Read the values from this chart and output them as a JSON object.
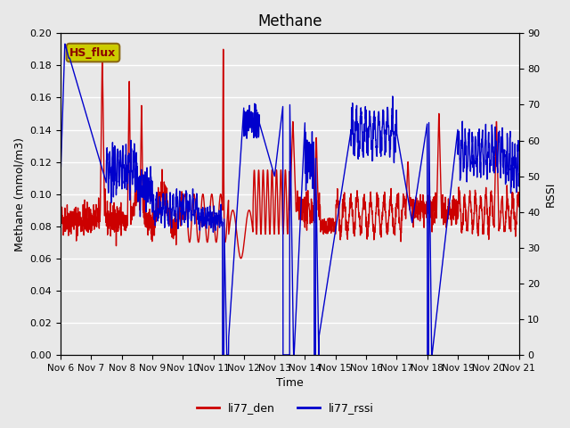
{
  "title": "Methane",
  "xlabel": "Time",
  "ylabel_left": "Methane (mmol/m3)",
  "ylabel_right": "RSSI",
  "left_ylim": [
    0.0,
    0.2
  ],
  "right_ylim": [
    0,
    90
  ],
  "left_yticks": [
    0.0,
    0.02,
    0.04,
    0.06,
    0.08,
    0.1,
    0.12,
    0.14,
    0.16,
    0.18,
    0.2
  ],
  "right_yticks": [
    0,
    10,
    20,
    30,
    40,
    50,
    60,
    70,
    80,
    90
  ],
  "xtick_labels": [
    "Nov 6",
    "Nov 7",
    "Nov 8",
    "Nov 9",
    "Nov 10",
    "Nov 11",
    "Nov 12",
    "Nov 13",
    "Nov 14",
    "Nov 15",
    "Nov 16",
    "Nov 17",
    "Nov 18",
    "Nov 19",
    "Nov 20",
    "Nov 21"
  ],
  "legend_labels": [
    "li77_den",
    "li77_rssi"
  ],
  "legend_colors": [
    "#cc0000",
    "#0000cc"
  ],
  "line_width": 1.0,
  "bg_color": "#e8e8e8",
  "grid_color": "#ffffff",
  "annotation_text": "HS_flux",
  "annotation_bg": "#cccc00",
  "annotation_border": "#8B6914"
}
